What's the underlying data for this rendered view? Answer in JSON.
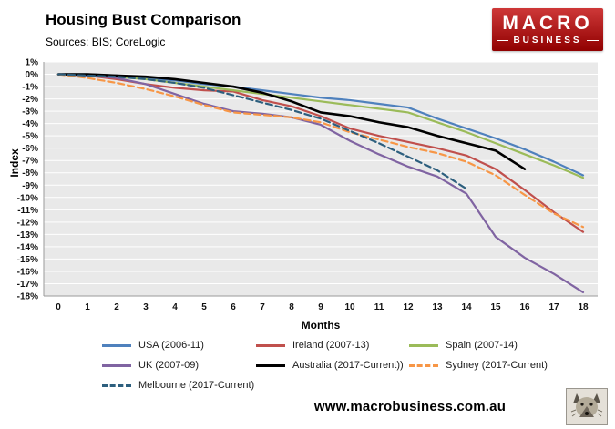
{
  "header": {
    "title": "Housing Bust Comparison",
    "subtitle": "Sources: BIS; CoreLogic"
  },
  "logo": {
    "line1": "MACRO",
    "line2": "BUSINESS",
    "bg_color": "#c00000"
  },
  "chart_data": {
    "type": "line",
    "x": [
      0,
      1,
      2,
      3,
      4,
      5,
      6,
      7,
      8,
      9,
      10,
      11,
      12,
      13,
      14,
      15,
      16,
      17,
      18
    ],
    "xlabel": "Months",
    "ylabel": "Index",
    "ylim": [
      -18,
      1
    ],
    "ytick_step": 1,
    "ytick_suffix": "%",
    "grid": true,
    "legend_position": "bottom",
    "plot_bg": "#e9e9e9",
    "series": [
      {
        "name": "USA (2006-11)",
        "color": "#4F81BD",
        "dash": "solid",
        "values": [
          0,
          0,
          -0.1,
          -0.3,
          -0.5,
          -0.8,
          -1.0,
          -1.3,
          -1.6,
          -1.9,
          -2.1,
          -2.4,
          -2.7,
          -3.6,
          -4.4,
          -5.2,
          -6.1,
          -7.1,
          -8.2
        ]
      },
      {
        "name": "Ireland (2007-13)",
        "color": "#C0504D",
        "dash": "solid",
        "values": [
          0,
          -0.1,
          -0.4,
          -0.8,
          -1.1,
          -1.3,
          -1.4,
          -2.1,
          -2.6,
          -3.4,
          -4.4,
          -5.0,
          -5.5,
          -6.0,
          -6.6,
          -7.7,
          -9.4,
          -11.2,
          -12.8
        ]
      },
      {
        "name": "Spain (2007-14)",
        "color": "#9BBB59",
        "dash": "solid",
        "values": [
          0,
          -0.1,
          -0.2,
          -0.4,
          -0.7,
          -1.0,
          -1.3,
          -1.6,
          -1.9,
          -2.2,
          -2.5,
          -2.8,
          -3.1,
          -3.9,
          -4.7,
          -5.6,
          -6.5,
          -7.4,
          -8.4
        ]
      },
      {
        "name": "UK (2007-09)",
        "color": "#8064A2",
        "dash": "solid",
        "values": [
          0,
          -0.1,
          -0.3,
          -0.8,
          -1.6,
          -2.4,
          -3.0,
          -3.2,
          -3.5,
          -4.1,
          -5.4,
          -6.5,
          -7.5,
          -8.3,
          -9.7,
          -13.2,
          -14.9,
          -16.2,
          -17.7
        ]
      },
      {
        "name": "Australia (2017-Current))",
        "color": "#000000",
        "dash": "solid",
        "values": [
          0,
          0,
          -0.1,
          -0.2,
          -0.4,
          -0.7,
          -1.0,
          -1.5,
          -2.2,
          -3.1,
          -3.4,
          -3.9,
          -4.3,
          -5.0,
          -5.6,
          -6.2,
          -7.7
        ]
      },
      {
        "name": "Sydney (2017-Current)",
        "color": "#F79646",
        "dash": "dashed",
        "values": [
          0,
          -0.3,
          -0.7,
          -1.2,
          -1.8,
          -2.5,
          -3.1,
          -3.3,
          -3.5,
          -3.9,
          -4.7,
          -5.3,
          -5.9,
          -6.4,
          -7.1,
          -8.2,
          -9.8,
          -11.3,
          -12.4
        ]
      },
      {
        "name": "Melbourne (2017-Current)",
        "color": "#2D5F7E",
        "dash": "dashed",
        "values": [
          0,
          -0.1,
          -0.2,
          -0.4,
          -0.7,
          -1.1,
          -1.7,
          -2.3,
          -2.9,
          -3.6,
          -4.6,
          -5.6,
          -6.7,
          -7.8,
          -9.3
        ]
      }
    ]
  },
  "footer": {
    "url": "www.macrobusiness.com.au"
  }
}
